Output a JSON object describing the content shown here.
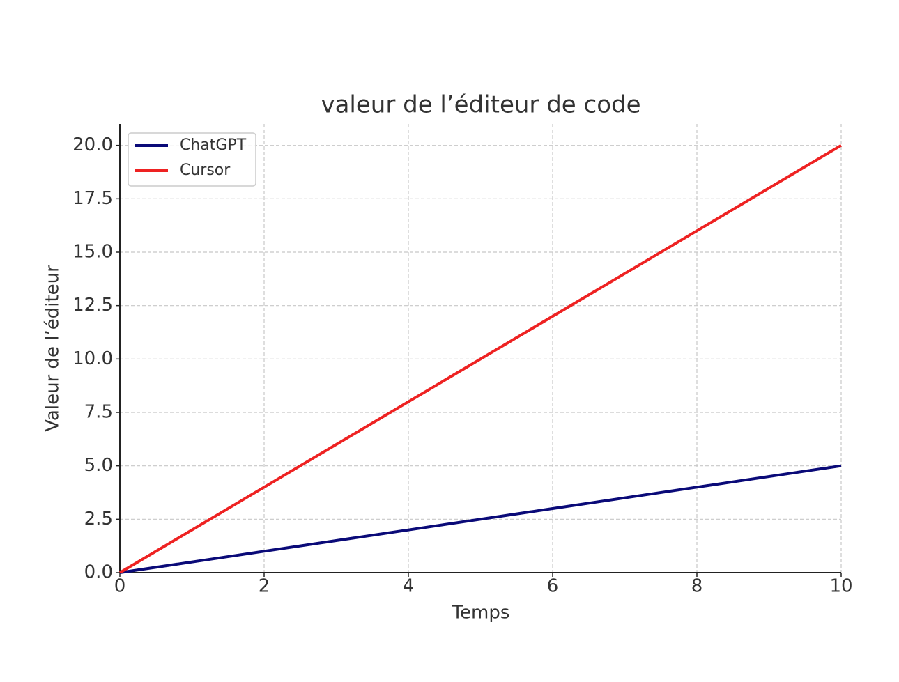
{
  "chart_data": {
    "type": "line",
    "title": "valeur de l’éditeur de code",
    "x_label": "Temps",
    "y_label": "Valeur de l’éditeur",
    "x": [
      0,
      2,
      4,
      6,
      8,
      10
    ],
    "series": [
      {
        "name": "ChatGPT",
        "color": "#0a0a78",
        "values": [
          0,
          1,
          2,
          3,
          4,
          5
        ]
      },
      {
        "name": "Cursor",
        "color": "#ee2222",
        "values": [
          0,
          4,
          8,
          12,
          16,
          20
        ]
      }
    ],
    "xlim": [
      0,
      10
    ],
    "xticks": [
      0,
      2,
      4,
      6,
      8,
      10
    ],
    "ylim": [
      0,
      21
    ],
    "yticks": [
      {
        "value": 0,
        "label": "0.0"
      },
      {
        "value": 2.5,
        "label": "2.5"
      },
      {
        "value": 5,
        "label": "5.0"
      },
      {
        "value": 7.5,
        "label": "7.5"
      },
      {
        "value": 10,
        "label": "10.0"
      },
      {
        "value": 12.5,
        "label": "12.5"
      },
      {
        "value": 15,
        "label": "15.0"
      },
      {
        "value": 17.5,
        "label": "17.5"
      },
      {
        "value": 20,
        "label": "20.0"
      }
    ],
    "grid": true,
    "legend": "upper left"
  }
}
